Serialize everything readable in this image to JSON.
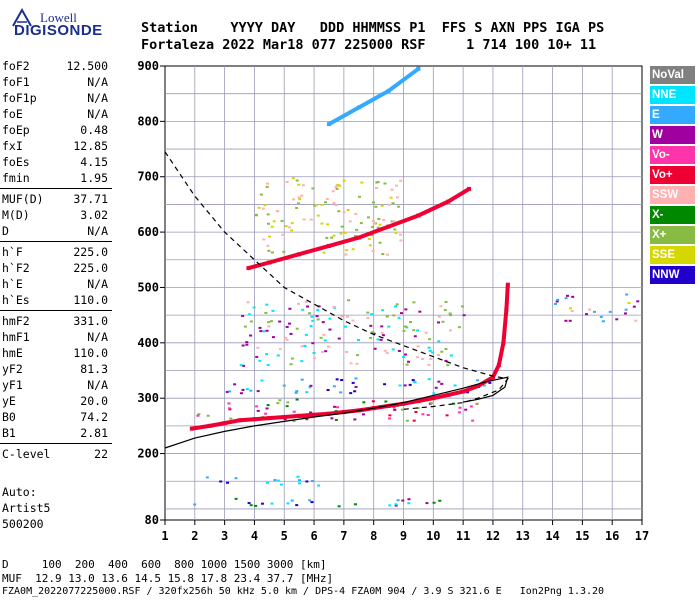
{
  "logo": {
    "line1": "Lowell",
    "line2": "DIGISONDE"
  },
  "header": {
    "row1": "Station    YYYY DAY   DDD HHMMSS P1  FFS S AXN PPS IGA PS",
    "row2": "Fortaleza 2022 Mar18 077 225000 RSF     1 714 100 10+ 11"
  },
  "params": {
    "group1": [
      {
        "label": "foF2",
        "value": "12.500"
      },
      {
        "label": "foF1",
        "value": "N/A"
      },
      {
        "label": "foF1p",
        "value": "N/A"
      },
      {
        "label": "foE",
        "value": "N/A"
      },
      {
        "label": "foEp",
        "value": "0.48"
      },
      {
        "label": "fxI",
        "value": "12.85"
      },
      {
        "label": "foEs",
        "value": "4.15"
      },
      {
        "label": "fmin",
        "value": "1.95"
      }
    ],
    "group2": [
      {
        "label": "MUF(D)",
        "value": "37.71"
      },
      {
        "label": "M(D)",
        "value": "3.02"
      },
      {
        "label": "D",
        "value": "N/A"
      }
    ],
    "group3": [
      {
        "label": "h`F",
        "value": "225.0"
      },
      {
        "label": "h`F2",
        "value": "225.0"
      },
      {
        "label": "h`E",
        "value": "N/A"
      },
      {
        "label": "h`Es",
        "value": "110.0"
      }
    ],
    "group4": [
      {
        "label": "hmF2",
        "value": "331.0"
      },
      {
        "label": "hmF1",
        "value": "N/A"
      },
      {
        "label": "hmE",
        "value": "110.0"
      },
      {
        "label": "yF2",
        "value": "81.3"
      },
      {
        "label": "yF1",
        "value": "N/A"
      },
      {
        "label": "yE",
        "value": "20.0"
      },
      {
        "label": "B0",
        "value": "74.2"
      },
      {
        "label": "B1",
        "value": "2.81"
      }
    ],
    "group5": [
      {
        "label": "C-level",
        "value": "22"
      }
    ],
    "autoscaler": [
      "Auto:",
      "Artist5",
      "500200"
    ]
  },
  "legend": [
    {
      "label": "NoVal",
      "color": "#808080"
    },
    {
      "label": "NNE",
      "color": "#00e5ff"
    },
    {
      "label": "E",
      "color": "#33aaff"
    },
    {
      "label": "W",
      "color": "#a000a0"
    },
    {
      "label": "Vo-",
      "color": "#ff33aa"
    },
    {
      "label": "Vo+",
      "color": "#ee0033"
    },
    {
      "label": "SSW",
      "color": "#ffb0b0"
    },
    {
      "label": "X-",
      "color": "#008800"
    },
    {
      "label": "X+",
      "color": "#88bb44"
    },
    {
      "label": "SSE",
      "color": "#d6d600"
    },
    {
      "label": "NNW",
      "color": "#2200cc"
    }
  ],
  "chart_data": {
    "type": "scatter",
    "xlim": [
      1,
      17
    ],
    "ylim": [
      80,
      900
    ],
    "x_ticks": [
      "1",
      "2",
      "3",
      "4",
      "5",
      "6",
      "7",
      "8",
      "9",
      "10",
      "11",
      "12",
      "13",
      "14",
      "15",
      "16",
      "17"
    ],
    "y_ticks": [
      "80",
      "200",
      "300",
      "400",
      "500",
      "600",
      "700",
      "800",
      "900"
    ],
    "grid": true,
    "series": [
      {
        "name": "trace-F2-main",
        "color": "#ee0033",
        "points": [
          [
            1.9,
            245
          ],
          [
            2.5,
            250
          ],
          [
            3,
            255
          ],
          [
            3.5,
            260
          ],
          [
            4,
            262
          ],
          [
            4.5,
            264
          ],
          [
            5,
            266
          ],
          [
            5.5,
            268
          ],
          [
            6,
            270
          ],
          [
            6.5,
            272
          ],
          [
            7,
            275
          ],
          [
            7.5,
            278
          ],
          [
            8,
            282
          ],
          [
            8.5,
            286
          ],
          [
            9,
            290
          ],
          [
            9.5,
            295
          ],
          [
            10,
            300
          ],
          [
            10.5,
            306
          ],
          [
            11,
            312
          ],
          [
            11.5,
            322
          ],
          [
            12,
            338
          ],
          [
            12.2,
            360
          ],
          [
            12.35,
            400
          ],
          [
            12.45,
            460
          ],
          [
            12.5,
            505
          ]
        ]
      },
      {
        "name": "trace-F2-secondhop",
        "color": "#ee0033",
        "points": [
          [
            3.8,
            535
          ],
          [
            4.5,
            545
          ],
          [
            5.5,
            560
          ],
          [
            6.5,
            575
          ],
          [
            7.5,
            590
          ],
          [
            8.5,
            610
          ],
          [
            9.5,
            630
          ],
          [
            10.5,
            655
          ],
          [
            11.2,
            678
          ]
        ]
      },
      {
        "name": "trace-F2-thirdhop",
        "color": "#33aaff",
        "points": [
          [
            6.5,
            795
          ],
          [
            7.5,
            825
          ],
          [
            8.5,
            855
          ],
          [
            9.5,
            895
          ]
        ]
      },
      {
        "name": "profile-solid",
        "color": "#000000",
        "points": [
          [
            1,
            210
          ],
          [
            2,
            228
          ],
          [
            3,
            240
          ],
          [
            4,
            250
          ],
          [
            5,
            258
          ],
          [
            6,
            266
          ],
          [
            7,
            273
          ],
          [
            8,
            282
          ],
          [
            9,
            292
          ],
          [
            10,
            305
          ],
          [
            11,
            318
          ],
          [
            11.8,
            330
          ],
          [
            12.5,
            338
          ],
          [
            12.4,
            320
          ],
          [
            12,
            305
          ],
          [
            11.5,
            298
          ],
          [
            11,
            293
          ]
        ]
      },
      {
        "name": "profile-dashed",
        "color": "#000000",
        "dashed": true,
        "points": [
          [
            1,
            745
          ],
          [
            2,
            665
          ],
          [
            3,
            600
          ],
          [
            4,
            550
          ],
          [
            5,
            500
          ],
          [
            6,
            470
          ],
          [
            7,
            440
          ],
          [
            8,
            415
          ],
          [
            9,
            395
          ],
          [
            10,
            375
          ],
          [
            11,
            355
          ],
          [
            12,
            340
          ],
          [
            12.5,
            335
          ],
          [
            12.2,
            315
          ],
          [
            11.5,
            300
          ],
          [
            11,
            292
          ],
          [
            10,
            285
          ],
          [
            9,
            280
          ]
        ]
      }
    ],
    "echo_regions": [
      {
        "name": "es-layer-110",
        "x": [
          1.9,
          10.2
        ],
        "y": [
          105,
          122
        ],
        "colors": [
          "#a000a0",
          "#33aaff",
          "#00e5ff",
          "#008800",
          "#2200cc"
        ]
      },
      {
        "name": "es-layer-150",
        "x": [
          2,
          6.3
        ],
        "y": [
          140,
          160
        ],
        "colors": [
          "#33aaff",
          "#00e5ff",
          "#2200cc"
        ]
      },
      {
        "name": "f-trace-spread",
        "x": [
          2,
          11.5
        ],
        "y": [
          260,
          300
        ],
        "colors": [
          "#ee0033",
          "#008800",
          "#ff33aa",
          "#88bb44",
          "#a000a0"
        ]
      },
      {
        "name": "f-spread-blue",
        "x": [
          3,
          12
        ],
        "y": [
          310,
          340
        ],
        "colors": [
          "#33aaff",
          "#00e5ff",
          "#2200cc",
          "#a000a0"
        ]
      },
      {
        "name": "mid-scatter",
        "x": [
          3.5,
          11
        ],
        "y": [
          360,
          480
        ],
        "colors": [
          "#00e5ff",
          "#a000a0",
          "#ffb0b0",
          "#88bb44"
        ]
      },
      {
        "name": "high-scatter",
        "x": [
          4,
          9
        ],
        "y": [
          560,
          700
        ],
        "colors": [
          "#88bb44",
          "#ffb0b0",
          "#d6d600"
        ]
      },
      {
        "name": "far-right-scatter",
        "x": [
          14,
          16.9
        ],
        "y": [
          440,
          490
        ],
        "colors": [
          "#33aaff",
          "#ffb0b0",
          "#d6d600",
          "#a000a0"
        ]
      }
    ]
  },
  "footer": {
    "dist_row": "D     100  200  400  600  800 1000 1500 3000 [km]",
    "muf_row": "MUF  12.9 13.0 13.6 14.5 15.8 17.8 23.4 37.7 [MHz]",
    "file_row": "FZA0M_2022077225000.RSF / 320fx256h 50 kHz 5.0 km / DPS-4 FZA0M 904 / 3.9 S 321.6 E   Ion2Png 1.3.20"
  }
}
